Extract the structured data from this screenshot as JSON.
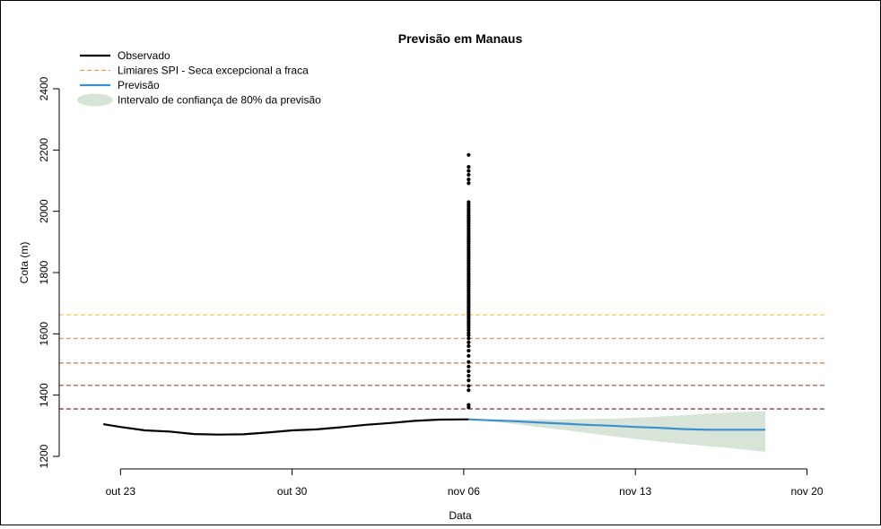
{
  "chart_data": {
    "type": "line",
    "title": "Previsão em Manaus",
    "xlabel": "Data",
    "ylabel": "Cota (m)",
    "ylim": [
      1200,
      2400
    ],
    "y_ticks": [
      1200,
      1400,
      1600,
      1800,
      2000,
      2200,
      2400
    ],
    "x_ticks": [
      {
        "label": "out 23",
        "day": 23
      },
      {
        "label": "out 30",
        "day": 30
      },
      {
        "label": "nov 06",
        "day": 37
      },
      {
        "label": "nov 13",
        "day": 44
      },
      {
        "label": "nov 20",
        "day": 51
      }
    ],
    "xlim": [
      20.5,
      53.8
    ],
    "legend": {
      "position": "top-left",
      "entries": [
        {
          "label": "Observado",
          "kind": "line",
          "color": "#000000"
        },
        {
          "label": "Limiares SPI - Seca excepcional a fraca",
          "kind": "dashed",
          "color": "#c8a060"
        },
        {
          "label": "Previsão",
          "kind": "line",
          "color": "#3a8fd0"
        },
        {
          "label": "Intervalo de confiança de 80% da previsão",
          "kind": "fill",
          "color": "#d8e4d8"
        }
      ]
    },
    "thresholds": [
      {
        "value": 1662,
        "color": "#f2cc55"
      },
      {
        "value": 1585,
        "color": "#e0a070"
      },
      {
        "value": 1505,
        "color": "#c88a58"
      },
      {
        "value": 1432,
        "color": "#b05a58"
      },
      {
        "value": 1355,
        "color": "#8a3a50"
      }
    ],
    "series": [
      {
        "name": "Observado",
        "color": "#000000",
        "x": [
          22.3,
          23,
          24,
          25,
          26,
          27,
          28,
          29,
          30,
          31,
          32,
          33,
          34,
          35,
          36,
          37.2
        ],
        "y": [
          1305,
          1296,
          1285,
          1281,
          1273,
          1271,
          1272,
          1278,
          1285,
          1288,
          1295,
          1303,
          1309,
          1316,
          1320,
          1321
        ]
      },
      {
        "name": "Previsão",
        "color": "#3a8fd0",
        "x": [
          37.2,
          38,
          39,
          40,
          41,
          42,
          43,
          44,
          45,
          46,
          47,
          48,
          49.3
        ],
        "y": [
          1321,
          1318,
          1315,
          1311,
          1307,
          1303,
          1300,
          1296,
          1293,
          1289,
          1287,
          1287,
          1287
        ]
      }
    ],
    "ci_band": {
      "color": "#d8e4d8",
      "x": [
        37.2,
        38,
        39,
        40,
        41,
        42,
        43,
        44,
        45,
        46,
        47,
        48,
        49.3
      ],
      "lower": [
        1321,
        1315,
        1306,
        1296,
        1287,
        1277,
        1266,
        1257,
        1248,
        1240,
        1233,
        1226,
        1215
      ],
      "upper": [
        1321,
        1320,
        1321,
        1321,
        1321,
        1322,
        1323,
        1326,
        1330,
        1335,
        1340,
        1344,
        1347
      ]
    },
    "ensemble_points": {
      "x": 37.2,
      "color": "#000000",
      "y": [
        2184,
        2145,
        2132,
        2119,
        2104,
        2092,
        2030,
        2022,
        2015,
        2007,
        2000,
        1993,
        1986,
        1979,
        1972,
        1965,
        1958,
        1951,
        1944,
        1937,
        1930,
        1923,
        1916,
        1909,
        1902,
        1895,
        1888,
        1881,
        1874,
        1867,
        1860,
        1853,
        1846,
        1839,
        1832,
        1825,
        1818,
        1811,
        1804,
        1797,
        1790,
        1783,
        1776,
        1769,
        1762,
        1755,
        1748,
        1741,
        1734,
        1727,
        1720,
        1713,
        1706,
        1699,
        1692,
        1685,
        1678,
        1671,
        1664,
        1657,
        1650,
        1642,
        1635,
        1628,
        1620,
        1612,
        1603,
        1595,
        1585,
        1572,
        1560,
        1545,
        1528,
        1508,
        1493,
        1478,
        1463,
        1448,
        1430,
        1416,
        1368,
        1360
      ]
    }
  }
}
